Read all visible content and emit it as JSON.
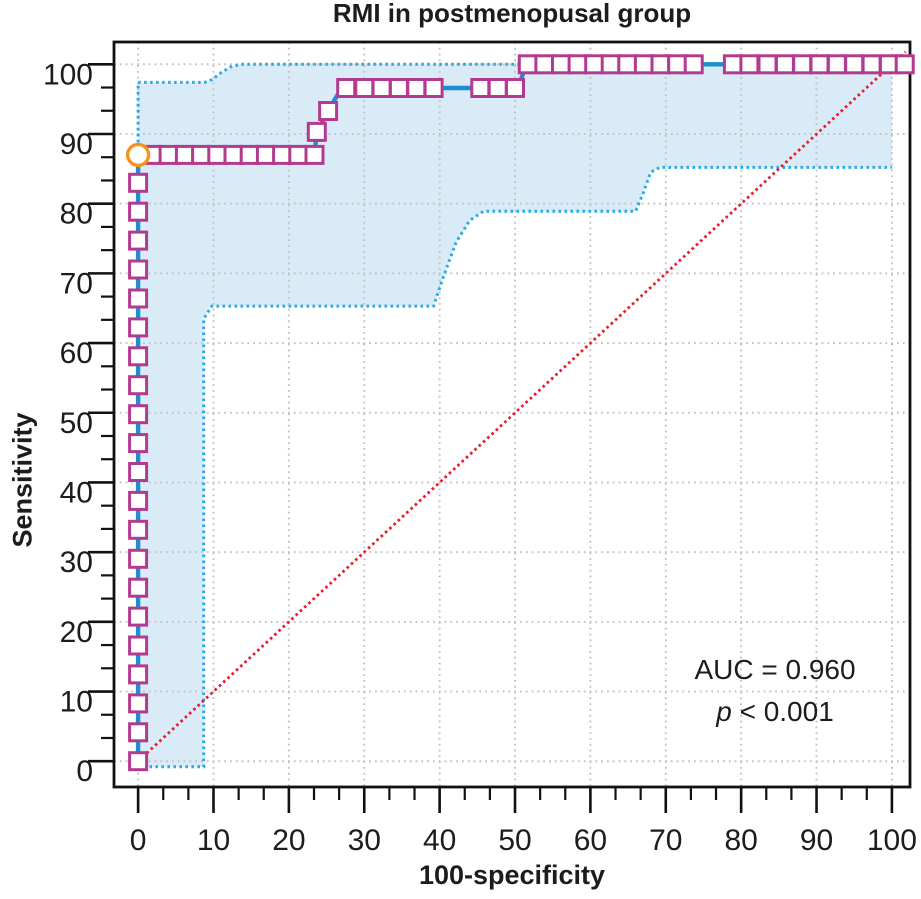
{
  "title": "RMI in postmenopusal group",
  "annotation": {
    "auc_line": "AUC = 0.960",
    "p_symbol": "p",
    "p_rest": " < 0.001"
  },
  "chart_data": {
    "type": "line",
    "subtype": "roc-curve-with-confidence-band",
    "title": "RMI in postmenopusal group",
    "xlabel": "100-specificity",
    "ylabel": "Sensitivity",
    "xlim": [
      -3.2,
      102.4
    ],
    "ylim": [
      -3.7,
      103.2
    ],
    "xticks": [
      0,
      10,
      20,
      30,
      40,
      50,
      60,
      70,
      80,
      90,
      100
    ],
    "yticks": [
      0,
      10,
      20,
      30,
      40,
      50,
      60,
      70,
      80,
      90,
      100
    ],
    "minor_divisions_per_major": 3,
    "grid": true,
    "auc_value": 0.96,
    "p_value": "< 0.001",
    "roc_line": [
      [
        0,
        0
      ],
      [
        0,
        87
      ],
      [
        23.4,
        87
      ],
      [
        23.7,
        90.3
      ],
      [
        25.2,
        93.3
      ],
      [
        27.0,
        96.6
      ],
      [
        50.4,
        96.6
      ],
      [
        51.5,
        100
      ],
      [
        102.3,
        100
      ]
    ],
    "reference_line": [
      [
        0,
        0
      ],
      [
        101.8,
        101.8
      ]
    ],
    "ci_upper": [
      [
        0,
        97.4
      ],
      [
        8.8,
        97.4
      ],
      [
        9.8,
        97.8
      ],
      [
        11,
        98.8
      ],
      [
        12.2,
        99.6
      ],
      [
        13.6,
        100
      ],
      [
        102.3,
        100
      ]
    ],
    "ci_lower": [
      [
        0.7,
        -0.8
      ],
      [
        8.7,
        -0.8
      ],
      [
        8.7,
        63.5
      ],
      [
        9.8,
        65.3
      ],
      [
        39.2,
        65.3
      ],
      [
        40.5,
        69.5
      ],
      [
        42.2,
        74.5
      ],
      [
        44,
        77.6
      ],
      [
        45.8,
        78.9
      ],
      [
        66,
        78.9
      ],
      [
        67,
        81.5
      ],
      [
        68,
        84.5
      ],
      [
        69.2,
        85.2
      ],
      [
        100,
        85.2
      ]
    ],
    "ci_left_edge": [
      [
        0,
        88.8
      ],
      [
        0,
        97.4
      ]
    ],
    "band": [
      [
        0,
        -0.8
      ],
      [
        0,
        97.4
      ],
      [
        8.8,
        97.4
      ],
      [
        9.8,
        97.8
      ],
      [
        11,
        98.8
      ],
      [
        12.2,
        99.6
      ],
      [
        13.6,
        100
      ],
      [
        100,
        100
      ],
      [
        100,
        85.2
      ],
      [
        69.2,
        85.2
      ],
      [
        68,
        84.5
      ],
      [
        67,
        81.5
      ],
      [
        66,
        78.9
      ],
      [
        45.8,
        78.9
      ],
      [
        44,
        77.6
      ],
      [
        42.2,
        74.5
      ],
      [
        40.5,
        69.5
      ],
      [
        39.2,
        65.3
      ],
      [
        9.8,
        65.3
      ],
      [
        8.7,
        63.5
      ],
      [
        8.7,
        -0.8
      ]
    ],
    "square_markers": [
      [
        0,
        0
      ],
      [
        0,
        4.15
      ],
      [
        0,
        8.3
      ],
      [
        0,
        12.45
      ],
      [
        0,
        16.6
      ],
      [
        0,
        20.75
      ],
      [
        0,
        24.9
      ],
      [
        0,
        29.05
      ],
      [
        0,
        33.2
      ],
      [
        0,
        37.35
      ],
      [
        0,
        41.5
      ],
      [
        0,
        45.65
      ],
      [
        0,
        49.8
      ],
      [
        0,
        53.95
      ],
      [
        0,
        58.1
      ],
      [
        0,
        62.25
      ],
      [
        0,
        66.4
      ],
      [
        0,
        70.55
      ],
      [
        0,
        74.7
      ],
      [
        0,
        78.85
      ],
      [
        0,
        83
      ],
      [
        1.9,
        87
      ],
      [
        4.05,
        87
      ],
      [
        6.2,
        87
      ],
      [
        8.35,
        87
      ],
      [
        10.5,
        87
      ],
      [
        12.65,
        87
      ],
      [
        14.8,
        87
      ],
      [
        16.95,
        87
      ],
      [
        19.1,
        87
      ],
      [
        21.25,
        87
      ],
      [
        23.4,
        87
      ],
      [
        23.7,
        90.3
      ],
      [
        25.2,
        93.3
      ],
      [
        27.6,
        96.6
      ],
      [
        30,
        96.6
      ],
      [
        32.3,
        96.6
      ],
      [
        34.6,
        96.6
      ],
      [
        36.9,
        96.6
      ],
      [
        39.2,
        96.6
      ],
      [
        45.4,
        96.6
      ],
      [
        47.7,
        96.6
      ],
      [
        50,
        96.6
      ],
      [
        51.7,
        100
      ],
      [
        53.9,
        100
      ],
      [
        56.1,
        100
      ],
      [
        58.3,
        100
      ],
      [
        60.5,
        100
      ],
      [
        62.7,
        100
      ],
      [
        64.9,
        100
      ],
      [
        67.1,
        100
      ],
      [
        69.3,
        100
      ],
      [
        71.5,
        100
      ],
      [
        73.7,
        100
      ],
      [
        78.9,
        100
      ],
      [
        81.1,
        100
      ],
      [
        83.5,
        100
      ],
      [
        85.8,
        100
      ],
      [
        88.1,
        100
      ],
      [
        90.4,
        100
      ],
      [
        92.7,
        100
      ],
      [
        95,
        100
      ],
      [
        97.3,
        100
      ],
      [
        99.6,
        100
      ],
      [
        101.7,
        100
      ]
    ],
    "circle_marker": [
      0,
      87
    ],
    "colors": {
      "roc_line": "#1b8fd2",
      "marker_stroke": "#b23a90",
      "marker_fill": "#ffffff",
      "circle_stroke": "#f6921e",
      "ci_line": "#2baae2",
      "ci_band_fill": "#d9ebf7",
      "reference_line": "#e81c2c",
      "grid": "#c4c4c4",
      "axis": "#111111",
      "text": "#1c1c1c"
    }
  }
}
